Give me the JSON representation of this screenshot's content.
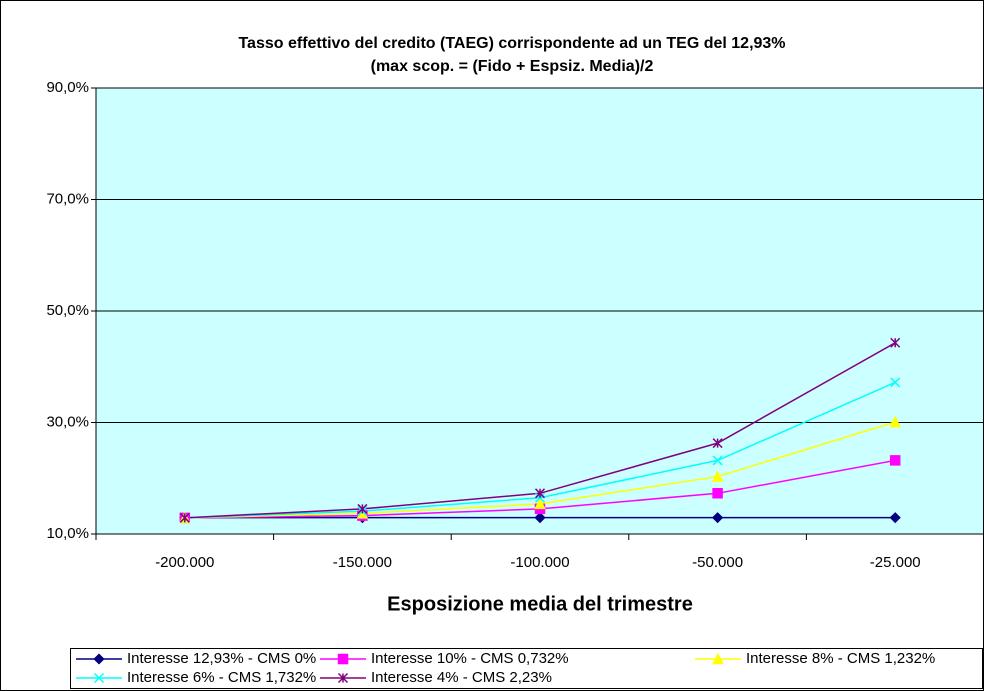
{
  "chart_data": {
    "type": "line",
    "title": "Tasso effettivo del credito (TAEG) corrispondente ad un TEG del 12,93%",
    "subtitle": "(max scop. = (Fido + Espsiz. Media)/2",
    "x_label": "Esposizione media del trimestre",
    "categories": [
      "-200.000",
      "-150.000",
      "-100.000",
      "-50.000",
      "-25.000"
    ],
    "series": [
      {
        "name": "Interesse 12,93% - CMS  0%",
        "color": "#000080",
        "marker": "diamond",
        "values": [
          12.93,
          12.93,
          12.93,
          12.93,
          12.93
        ]
      },
      {
        "name": "Interesse 10% - CMS 0,732%",
        "color": "#ff00ff",
        "marker": "square",
        "values": [
          12.9,
          13.3,
          14.5,
          17.3,
          23.2
        ]
      },
      {
        "name": "Interesse 8% - CMS 1,232%",
        "color": "#ffff00",
        "marker": "triangle",
        "values": [
          12.9,
          13.7,
          15.4,
          20.3,
          30.1
        ]
      },
      {
        "name": "Interesse 6% - CMS 1,732%",
        "color": "#00ffff",
        "marker": "x",
        "values": [
          12.9,
          14.1,
          16.5,
          23.2,
          37.2
        ]
      },
      {
        "name": "Interesse 4% - CMS 2,23%",
        "color": "#800080",
        "marker": "star",
        "values": [
          12.9,
          14.5,
          17.3,
          26.3,
          44.3
        ]
      }
    ],
    "ylim": [
      10,
      90
    ],
    "yticks": [
      {
        "value": 10,
        "label": "10,0%"
      },
      {
        "value": 30,
        "label": "30,0%"
      },
      {
        "value": 50,
        "label": "50,0%"
      },
      {
        "value": 70,
        "label": "70,0%"
      },
      {
        "value": 90,
        "label": "90,0%"
      }
    ],
    "grid": true,
    "background": "#ccffff",
    "legend": "bottom"
  }
}
